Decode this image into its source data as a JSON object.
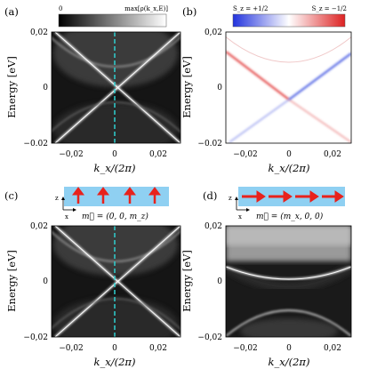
{
  "figure": {
    "panels": [
      {
        "label": "(a)",
        "ylabel": "Energy [eV]",
        "xlabel": "k_x/(2π)",
        "yticks": [
          "0,02",
          "0",
          "−0.02"
        ],
        "xticks": [
          "−0,02",
          "0",
          "0,02"
        ],
        "colorbar": {
          "min": "0",
          "max": "max[ρ(k_x,E)]"
        }
      },
      {
        "label": "(b)",
        "ylabel": "Energy [eV]",
        "xlabel": "k_x/(2π)",
        "yticks": [
          "0,02",
          "0",
          "−0.02"
        ],
        "xticks": [
          "−0,02",
          "0",
          "0,02"
        ],
        "colorbar": {
          "left": "S_z = +1/2",
          "right": "S_z = −1/2"
        }
      },
      {
        "label": "(c)",
        "ylabel": "Energy [eV]",
        "xlabel": "k_x/(2π)",
        "yticks": [
          "0,02",
          "0",
          "−0,02"
        ],
        "xticks": [
          "−0,02",
          "0",
          "0,02"
        ],
        "inset": {
          "axis_z": "z",
          "axis_x": "x",
          "magnetization": "m⃗ = (0, 0, m_z)"
        }
      },
      {
        "label": "(d)",
        "ylabel": "Energy [eV]",
        "xlabel": "k_x/(2π)",
        "yticks": [
          "0,02",
          "0",
          "−0,02"
        ],
        "xticks": [
          "−0,02",
          "0",
          "0,02"
        ],
        "inset": {
          "axis_z": "z",
          "axis_x": "x",
          "magnetization": "m⃗ = (m_x, 0, 0)"
        }
      }
    ],
    "colors": {
      "cyan_line": "#2fd0d0",
      "spin_up": "#3a4fe0",
      "spin_down": "#e03030",
      "arrow": "#e8221c",
      "inset_bg": "#8fd0f2"
    }
  }
}
